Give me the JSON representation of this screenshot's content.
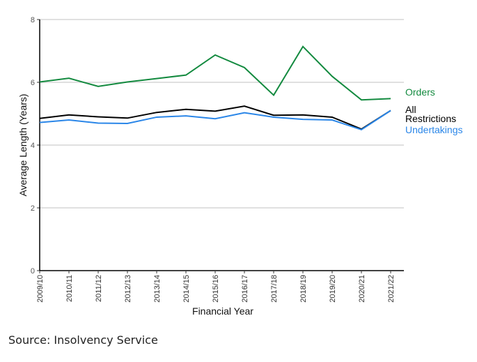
{
  "chart_data": {
    "type": "line",
    "title": "",
    "xlabel": "Financial Year",
    "ylabel": "Average Length (Years)",
    "ylim": [
      0,
      8
    ],
    "yticks": [
      0,
      2,
      4,
      6,
      8
    ],
    "grid": true,
    "categories": [
      "2009/10",
      "2010/11",
      "2011/12",
      "2012/13",
      "2013/14",
      "2014/15",
      "2015/16",
      "2016/17",
      "2017/18",
      "2018/19",
      "2019/20",
      "2020/21",
      "2021/22"
    ],
    "series": [
      {
        "name": "Orders",
        "color": "#138a3f",
        "values": [
          6.01,
          6.13,
          5.87,
          6.01,
          6.12,
          6.23,
          6.87,
          6.47,
          5.59,
          7.14,
          6.19,
          5.44,
          5.48
        ]
      },
      {
        "name": "All Restrictions",
        "color": "#000000",
        "values": [
          4.85,
          4.96,
          4.9,
          4.86,
          5.04,
          5.14,
          5.08,
          5.24,
          4.95,
          4.96,
          4.89,
          4.51,
          5.1
        ]
      },
      {
        "name": "Undertakings",
        "color": "#2a86e8",
        "values": [
          4.72,
          4.8,
          4.7,
          4.69,
          4.89,
          4.93,
          4.84,
          5.03,
          4.89,
          4.82,
          4.8,
          4.49,
          5.1
        ]
      }
    ],
    "legend_placement": "right, inline at line ends"
  },
  "source": "Source: Insolvency Service"
}
